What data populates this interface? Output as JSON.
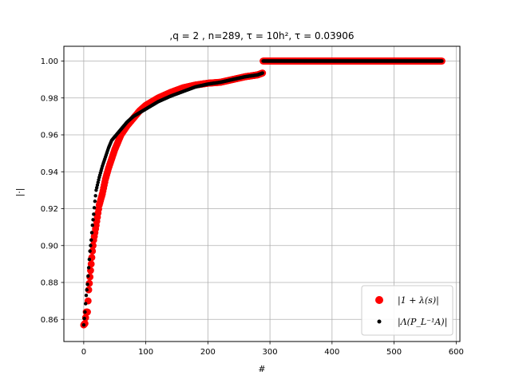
{
  "chart_data": {
    "type": "scatter",
    "title": ",q = 2 , n=289, τ = 10h², τ = 0.03906",
    "xlabel": "#",
    "ylabel": "|·|",
    "xlim": [
      -32,
      606
    ],
    "ylim": [
      0.848,
      1.008
    ],
    "xticks": [
      0,
      100,
      200,
      300,
      400,
      500,
      600
    ],
    "yticks": [
      0.86,
      0.88,
      0.9,
      0.92,
      0.94,
      0.96,
      0.98,
      1.0
    ],
    "xtick_labels": [
      "0",
      "100",
      "200",
      "300",
      "400",
      "500",
      "600"
    ],
    "ytick_labels": [
      "0.86",
      "0.88",
      "0.90",
      "0.92",
      "0.94",
      "0.96",
      "0.98",
      "1.00"
    ],
    "grid": true,
    "legend_position": "lower-right",
    "n_points": 578,
    "series": [
      {
        "name": "|1 + λ(s)|",
        "color": "#ff0000",
        "marker": "circle-large",
        "x": [
          0,
          2,
          4,
          6,
          8,
          10,
          12,
          14,
          16,
          18,
          20,
          25,
          30,
          35,
          40,
          45,
          50,
          60,
          70,
          80,
          90,
          100,
          120,
          140,
          160,
          180,
          200,
          220,
          240,
          260,
          280,
          288,
          289,
          300,
          400,
          500,
          577
        ],
        "y": [
          0.857,
          0.8578,
          0.864,
          0.864,
          0.876,
          0.883,
          0.89,
          0.897,
          0.903,
          0.907,
          0.911,
          0.922,
          0.928,
          0.936,
          0.942,
          0.947,
          0.952,
          0.96,
          0.965,
          0.969,
          0.973,
          0.976,
          0.98,
          0.983,
          0.9855,
          0.987,
          0.988,
          0.9885,
          0.99,
          0.9915,
          0.9925,
          0.9935,
          1.0,
          1.0,
          1.0,
          1.0,
          1.0
        ]
      },
      {
        "name": "|Λ(P_L⁻¹A)|",
        "color": "#000000",
        "marker": "dot-small",
        "x": [
          0,
          2,
          4,
          6,
          8,
          10,
          12,
          14,
          16,
          18,
          20,
          25,
          30,
          35,
          40,
          45,
          50,
          60,
          70,
          80,
          90,
          100,
          120,
          140,
          160,
          180,
          200,
          220,
          240,
          260,
          280,
          288,
          289,
          300,
          400,
          500,
          577
        ],
        "y": [
          0.857,
          0.864,
          0.873,
          0.879,
          0.888,
          0.897,
          0.903,
          0.911,
          0.917,
          0.924,
          0.93,
          0.937,
          0.943,
          0.948,
          0.953,
          0.957,
          0.959,
          0.963,
          0.967,
          0.97,
          0.972,
          0.974,
          0.978,
          0.981,
          0.9835,
          0.986,
          0.9875,
          0.9885,
          0.99,
          0.9915,
          0.9925,
          0.9935,
          1.0,
          1.0,
          1.0,
          1.0,
          1.0
        ]
      }
    ]
  }
}
